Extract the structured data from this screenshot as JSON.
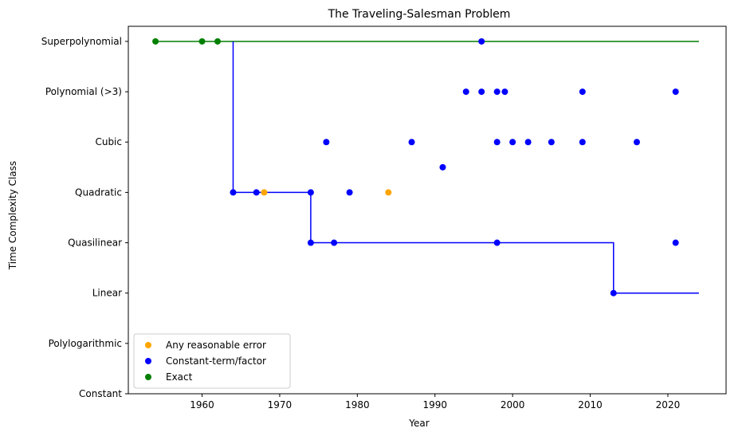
{
  "chart_data": {
    "type": "scatter",
    "title": "The Traveling-Salesman Problem",
    "xlabel": "Year",
    "ylabel": "Time Complexity Class",
    "xlim": [
      1950.5,
      2027.5
    ],
    "ylim": [
      0,
      7.3
    ],
    "x_ticks": [
      1960,
      1970,
      1980,
      1990,
      2000,
      2010,
      2020
    ],
    "y_categories": [
      "Constant",
      "Polylogarithmic",
      "Linear",
      "Quasilinear",
      "Quadratic",
      "Cubic",
      "Polynomial (>3)",
      "Superpolynomial"
    ],
    "grid": false,
    "legend_position": "lower-left",
    "colors": {
      "Any reasonable error": "#ffa500",
      "Constant-term/factor": "#0000ff",
      "Exact": "#008000"
    },
    "series": [
      {
        "name": "Any reasonable error",
        "color": "#ffa500",
        "points": [
          [
            1968,
            4
          ],
          [
            1984,
            4
          ]
        ]
      },
      {
        "name": "Constant-term/factor",
        "color": "#0000ff",
        "points": [
          [
            1996,
            7
          ],
          [
            1964,
            4
          ],
          [
            1967,
            4
          ],
          [
            1974,
            4
          ],
          [
            1979,
            4
          ],
          [
            1974,
            3
          ],
          [
            1977,
            3
          ],
          [
            1998,
            3
          ],
          [
            2021,
            3
          ],
          [
            1976,
            5
          ],
          [
            1987,
            5
          ],
          [
            1998,
            5
          ],
          [
            2000,
            5
          ],
          [
            2002,
            5
          ],
          [
            2005,
            5
          ],
          [
            2009,
            5
          ],
          [
            2016,
            5
          ],
          [
            1991,
            4.5
          ],
          [
            1994,
            6
          ],
          [
            1996,
            6
          ],
          [
            1998,
            6
          ],
          [
            1999,
            6
          ],
          [
            2009,
            6
          ],
          [
            2021,
            6
          ],
          [
            2013,
            2
          ]
        ]
      },
      {
        "name": "Exact",
        "color": "#008000",
        "points": [
          [
            1954,
            7
          ],
          [
            1960,
            7
          ],
          [
            1962,
            7
          ]
        ]
      }
    ],
    "step_lines": [
      {
        "color": "#008000",
        "points": [
          [
            1954,
            7
          ],
          [
            2024,
            7
          ]
        ]
      },
      {
        "color": "#0000ff",
        "points": [
          [
            1964,
            7
          ],
          [
            1964,
            4
          ],
          [
            1974,
            4
          ],
          [
            1974,
            3
          ],
          [
            2013,
            3
          ],
          [
            2013,
            2
          ],
          [
            2024,
            2
          ]
        ]
      }
    ]
  }
}
